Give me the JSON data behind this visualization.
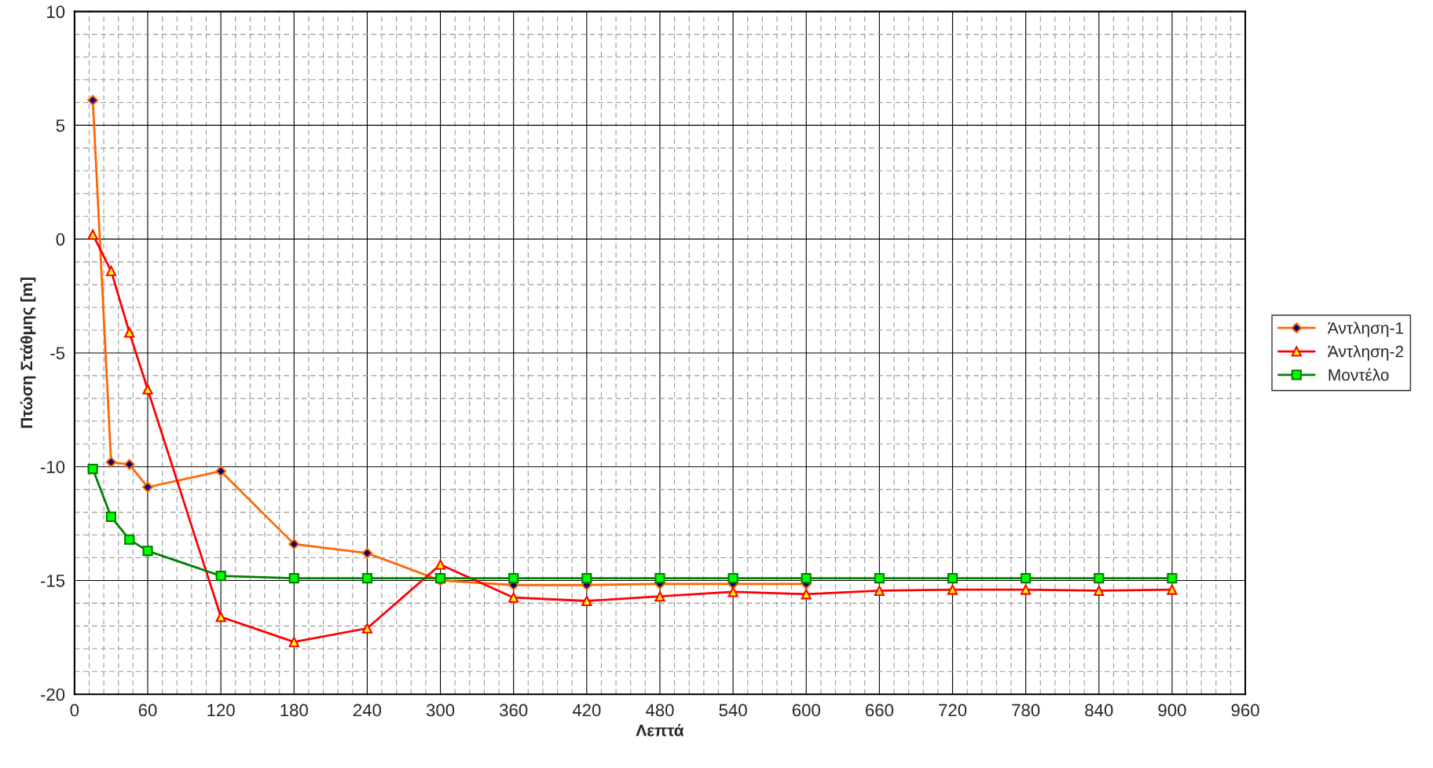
{
  "chart_data": {
    "type": "line",
    "xlabel": "Λεπτά",
    "ylabel": "Πτώση Στάθμης [m]",
    "xlim": [
      0,
      960
    ],
    "xticks": [
      0,
      60,
      120,
      180,
      240,
      300,
      360,
      420,
      480,
      540,
      600,
      660,
      720,
      780,
      840,
      900,
      960
    ],
    "ylim": [
      -20,
      10
    ],
    "yticks": [
      -20,
      -15,
      -10,
      -5,
      0,
      5,
      10
    ],
    "grid": true,
    "legend": "right",
    "series": [
      {
        "name": "Άντληση-1",
        "color": "#ff6600",
        "marker": "diamond",
        "x": [
          15,
          30,
          45,
          60,
          120,
          180,
          240,
          300,
          360,
          420,
          480,
          540,
          600
        ],
        "values": [
          6.1,
          -9.8,
          -9.9,
          -10.9,
          -10.2,
          -13.4,
          -13.8,
          -15.0,
          -15.2,
          -15.2,
          -15.15,
          -15.15,
          -15.15
        ]
      },
      {
        "name": "Άντληση-2",
        "color": "#ff0000",
        "marker": "triangle",
        "x": [
          15,
          30,
          45,
          60,
          120,
          180,
          240,
          300,
          360,
          420,
          480,
          540,
          600,
          660,
          720,
          780,
          840,
          900
        ],
        "values": [
          0.2,
          -1.4,
          -4.1,
          -6.6,
          -16.6,
          -17.7,
          -17.1,
          -14.3,
          -15.75,
          -15.9,
          -15.7,
          -15.5,
          -15.6,
          -15.45,
          -15.4,
          -15.4,
          -15.45,
          -15.4
        ]
      },
      {
        "name": "Μοντέλο",
        "color": "#008000",
        "marker": "square",
        "x": [
          15,
          30,
          45,
          60,
          120,
          180,
          240,
          300,
          360,
          420,
          480,
          540,
          600,
          660,
          720,
          780,
          840,
          900
        ],
        "values": [
          -10.1,
          -12.2,
          -13.2,
          -13.7,
          -14.8,
          -14.9,
          -14.9,
          -14.9,
          -14.9,
          -14.9,
          -14.9,
          -14.9,
          -14.9,
          -14.9,
          -14.9,
          -14.9,
          -14.9,
          -14.9
        ]
      }
    ]
  }
}
